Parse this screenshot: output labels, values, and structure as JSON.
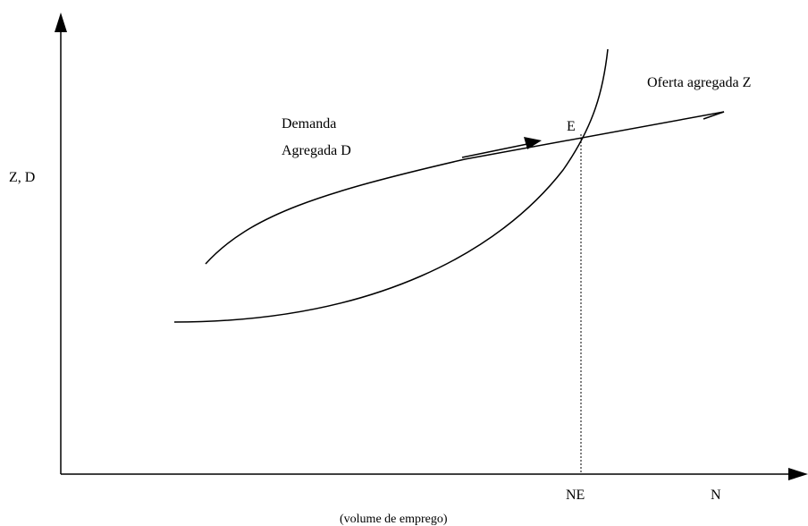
{
  "axis_labels": {
    "y": "Z, D",
    "x_point": "NE",
    "x": "N",
    "x_caption": "(volume de emprego)"
  },
  "curves": {
    "demand": [
      "Demanda",
      "Agregada D"
    ],
    "supply": "Oferta agregada Z"
  },
  "point": "E"
}
